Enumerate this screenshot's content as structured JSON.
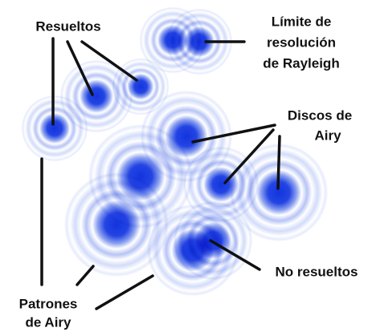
{
  "labels": {
    "resolved": "Resueltos",
    "rayleigh": [
      "Límite de",
      "resolución",
      "de Rayleigh"
    ],
    "airy_disks": [
      "Discos de",
      "Airy"
    ],
    "unresolved": "No resueltos",
    "airy_patterns": [
      "Patrones",
      "de Airy"
    ]
  }
}
